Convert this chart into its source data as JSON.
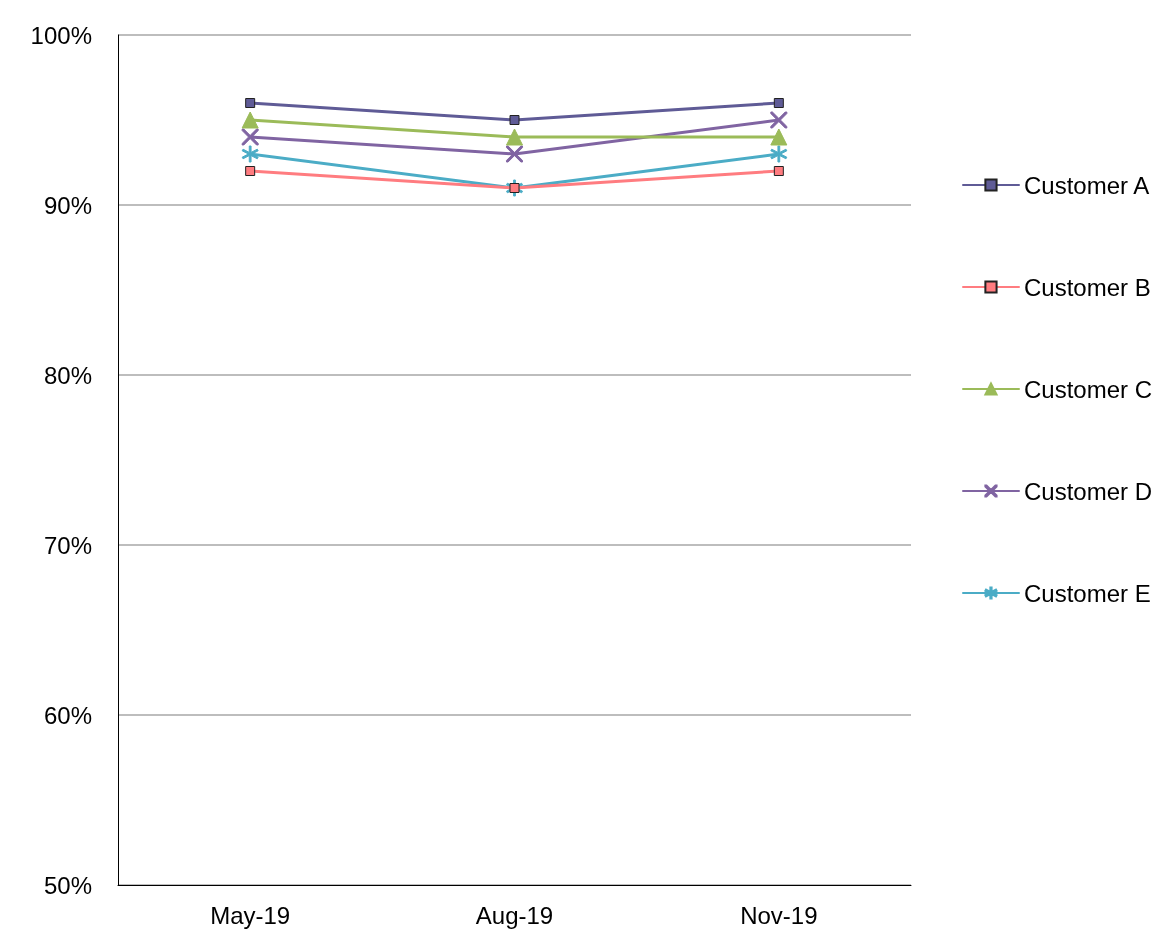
{
  "chart_data": {
    "type": "line",
    "categories": [
      "May-19",
      "Aug-19",
      "Nov-19"
    ],
    "series": [
      {
        "name": "Customer A",
        "color": "#5f5b96",
        "marker": "square",
        "values": [
          96,
          95,
          96
        ]
      },
      {
        "name": "Customer B",
        "color": "#ff7c80",
        "marker": "square",
        "values": [
          92,
          91,
          92
        ]
      },
      {
        "name": "Customer C",
        "color": "#9bbb59",
        "marker": "triangle",
        "values": [
          95,
          94,
          94
        ]
      },
      {
        "name": "Customer D",
        "color": "#8064a2",
        "marker": "cross",
        "values": [
          94,
          93,
          95
        ]
      },
      {
        "name": "Customer E",
        "color": "#4bacc6",
        "marker": "star",
        "values": [
          93,
          91,
          93
        ]
      }
    ],
    "ylim": [
      50,
      100
    ],
    "yticks": [
      {
        "value": 50,
        "label": "50%"
      },
      {
        "value": 60,
        "label": "60%"
      },
      {
        "value": 70,
        "label": "70%"
      },
      {
        "value": 80,
        "label": "80%"
      },
      {
        "value": 90,
        "label": "90%"
      },
      {
        "value": 100,
        "label": "100%"
      }
    ],
    "grid": "y",
    "legend": "right"
  }
}
